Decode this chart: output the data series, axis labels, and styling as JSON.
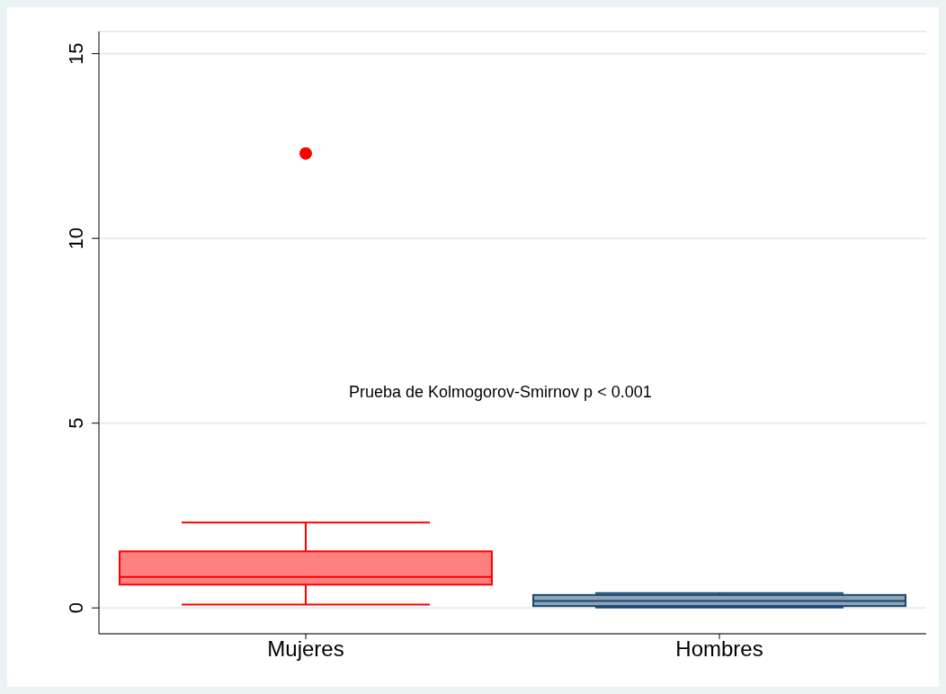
{
  "chart_data": {
    "type": "box",
    "categories": [
      "Mujeres",
      "Hombres"
    ],
    "series": [
      {
        "boxes": [
          {
            "low": 0.09,
            "q1": 0.63,
            "median": 0.84,
            "q3": 1.53,
            "high": 2.31,
            "outliers": [
              12.3
            ]
          },
          {
            "low": 0.01,
            "q1": 0.05,
            "median": 0.19,
            "q3": 0.35,
            "high": 0.4
          }
        ],
        "colors": [
          "#ff0000",
          "#1a476f"
        ]
      }
    ],
    "ylim": [
      -0.7,
      15.6
    ],
    "yticks": [
      0,
      5,
      10,
      15
    ],
    "grid": "y",
    "annotations": [
      "Prueba de Kolmogorov-Smirnov p < 0.001"
    ]
  }
}
